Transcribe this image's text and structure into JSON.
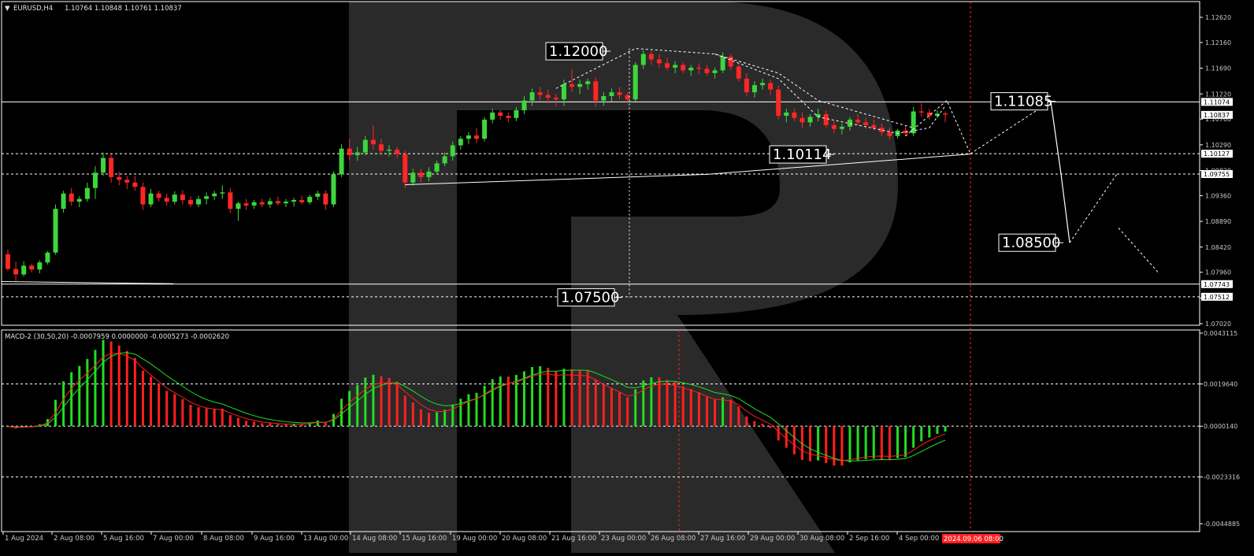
{
  "header": {
    "symbol": "EURUSD,H4",
    "ohlc": "1.10764 1.10848 1.10761 1.10837"
  },
  "macd_header": "MACD-2 (30,50,20) -0.0007959 0.0000000 -0.0005273 -0.0002620",
  "colors": {
    "bull": "#3dd63d",
    "bear": "#ff2626",
    "grid": "#ffffff",
    "signal": "#ff2020",
    "macd_line": "#22dd22",
    "logo": "#2a2a2a"
  },
  "chart_data": [
    {
      "type": "candlestick",
      "ylim": [
        1.0702,
        1.1262
      ],
      "price_ticks": [
        "1.12620",
        "1.12160",
        "1.11690",
        "1.11220",
        "1.10760",
        "1.10290",
        "1.09820",
        "1.09360",
        "1.08890",
        "1.08420",
        "1.07960",
        "1.07490",
        "1.07020"
      ],
      "price_tick_values": [
        1.1262,
        1.1216,
        1.1169,
        1.1122,
        1.1076,
        1.1029,
        1.0982,
        1.0936,
        1.0889,
        1.0842,
        1.0796,
        1.0749,
        1.0702
      ],
      "horizontal_levels": [
        {
          "label": "1.11074",
          "value": 1.11074,
          "style": "solid"
        },
        {
          "label": "1.10837",
          "value": 1.10837,
          "style": "current"
        },
        {
          "label": "1.10127",
          "value": 1.10127,
          "style": "dashed"
        },
        {
          "label": "1.09755",
          "value": 1.09755,
          "style": "dashed"
        },
        {
          "label": "1.07743",
          "value": 1.07743,
          "style": "solid"
        },
        {
          "label": "1.07512",
          "value": 1.07512,
          "style": "dashed"
        }
      ],
      "annotations": [
        {
          "text": "1.12000",
          "value": 1.12
        },
        {
          "text": "1.07500",
          "value": 1.075
        },
        {
          "text": "1.10114",
          "value": 1.10114
        },
        {
          "text": "1.11085",
          "value": 1.11085
        },
        {
          "text": "1.08500",
          "value": 1.085
        }
      ],
      "x_labels": [
        "1 Aug 2024",
        "2 Aug 08:00",
        "5 Aug 16:00",
        "7 Aug 00:00",
        "8 Aug 08:00",
        "9 Aug 16:00",
        "13 Aug 00:00",
        "14 Aug 08:00",
        "15 Aug 16:00",
        "19 Aug 00:00",
        "20 Aug 08:00",
        "21 Aug 16:00",
        "23 Aug 00:00",
        "26 Aug 08:00",
        "27 Aug 16:00",
        "29 Aug 00:00",
        "30 Aug 08:00",
        "2 Sep 16:00",
        "4 Sep 00:00"
      ],
      "x_label_highlight": "2024.09.06 08:00",
      "projected_path": [
        1.10127,
        1.11085,
        1.09755,
        1.085,
        1.09755
      ],
      "candles": [
        [
          1.0829,
          1.0838,
          1.0798,
          1.0802
        ],
        [
          1.0802,
          1.0815,
          1.078,
          1.0792
        ],
        [
          1.0792,
          1.0816,
          1.0788,
          1.0808
        ],
        [
          1.0808,
          1.0812,
          1.0796,
          1.0801
        ],
        [
          1.0801,
          1.0818,
          1.0794,
          1.0814
        ],
        [
          1.0814,
          1.0835,
          1.081,
          1.0832
        ],
        [
          1.0832,
          1.092,
          1.0828,
          1.0912
        ],
        [
          1.0912,
          1.0945,
          1.0905,
          1.094
        ],
        [
          1.094,
          1.095,
          1.0918,
          1.0925
        ],
        [
          1.0925,
          1.0935,
          1.0915,
          1.093
        ],
        [
          1.093,
          1.096,
          1.0925,
          1.095
        ],
        [
          1.095,
          1.099,
          1.093,
          1.0978
        ],
        [
          1.0978,
          1.1015,
          1.0972,
          1.1005
        ],
        [
          1.1005,
          1.1012,
          1.096,
          1.097
        ],
        [
          1.097,
          1.098,
          1.0955,
          1.0965
        ],
        [
          1.0965,
          1.0972,
          1.0948,
          1.096
        ],
        [
          1.096,
          1.0972,
          1.0945,
          1.0952
        ],
        [
          1.0952,
          1.096,
          1.091,
          1.092
        ],
        [
          1.092,
          1.0948,
          1.0915,
          1.094
        ],
        [
          1.094,
          1.0945,
          1.0925,
          1.0932
        ],
        [
          1.0932,
          1.094,
          1.0918,
          1.0925
        ],
        [
          1.0925,
          1.0944,
          1.092,
          1.0938
        ],
        [
          1.0938,
          1.0946,
          1.092,
          1.0928
        ],
        [
          1.0928,
          1.0935,
          1.0915,
          1.092
        ],
        [
          1.092,
          1.0936,
          1.0915,
          1.093
        ],
        [
          1.093,
          1.0942,
          1.092,
          1.0935
        ],
        [
          1.0935,
          1.0945,
          1.0928,
          1.094
        ],
        [
          1.094,
          1.0955,
          1.093,
          1.0942
        ],
        [
          1.0942,
          1.095,
          1.0905,
          1.0912
        ],
        [
          1.0912,
          1.0925,
          1.089,
          1.0922
        ],
        [
          1.0922,
          1.093,
          1.091,
          1.0918
        ],
        [
          1.0918,
          1.0928,
          1.0912,
          1.0924
        ],
        [
          1.0924,
          1.093,
          1.0915,
          1.092
        ],
        [
          1.092,
          1.0932,
          1.0914,
          1.0926
        ],
        [
          1.0926,
          1.0934,
          1.0918,
          1.0922
        ],
        [
          1.0922,
          1.093,
          1.0915,
          1.0925
        ],
        [
          1.0925,
          1.0932,
          1.0916,
          1.0928
        ],
        [
          1.0928,
          1.0936,
          1.092,
          1.0924
        ],
        [
          1.0924,
          1.0938,
          1.092,
          1.0934
        ],
        [
          1.0934,
          1.0945,
          1.0928,
          1.094
        ],
        [
          1.094,
          1.0946,
          1.091,
          1.092
        ],
        [
          1.092,
          1.098,
          1.0915,
          1.0975
        ],
        [
          1.0975,
          1.103,
          1.097,
          1.1022
        ],
        [
          1.1022,
          1.104,
          1.1,
          1.101
        ],
        [
          1.101,
          1.1025,
          1.1,
          1.1015
        ],
        [
          1.1015,
          1.1045,
          1.101,
          1.1038
        ],
        [
          1.1038,
          1.1065,
          1.102,
          1.103
        ],
        [
          1.103,
          1.104,
          1.101,
          1.1018
        ],
        [
          1.1018,
          1.1028,
          1.1008,
          1.102
        ],
        [
          1.102,
          1.1025,
          1.1005,
          1.1012
        ],
        [
          1.1012,
          1.1018,
          1.095,
          1.096
        ],
        [
          1.096,
          1.0985,
          1.0955,
          1.0978
        ],
        [
          1.0978,
          1.0985,
          1.096,
          1.097
        ],
        [
          1.097,
          1.0988,
          1.0962,
          1.098
        ],
        [
          1.098,
          1.1,
          1.0975,
          1.0995
        ],
        [
          1.0995,
          1.1015,
          1.099,
          1.1008
        ],
        [
          1.1008,
          1.1035,
          1.1,
          1.1028
        ],
        [
          1.1028,
          1.1045,
          1.102,
          1.104
        ],
        [
          1.104,
          1.1052,
          1.103,
          1.1046
        ],
        [
          1.1046,
          1.106,
          1.1032,
          1.104
        ],
        [
          1.104,
          1.108,
          1.1035,
          1.1075
        ],
        [
          1.1075,
          1.1095,
          1.1068,
          1.1088
        ],
        [
          1.1088,
          1.1092,
          1.1075,
          1.1082
        ],
        [
          1.1082,
          1.1088,
          1.107,
          1.1078
        ],
        [
          1.1078,
          1.1098,
          1.1072,
          1.1092
        ],
        [
          1.1092,
          1.1118,
          1.1085,
          1.111
        ],
        [
          1.111,
          1.1132,
          1.11,
          1.1125
        ],
        [
          1.1125,
          1.1135,
          1.111,
          1.112
        ],
        [
          1.112,
          1.113,
          1.1105,
          1.1115
        ],
        [
          1.1115,
          1.1122,
          1.11,
          1.1112
        ],
        [
          1.1112,
          1.1148,
          1.11,
          1.114
        ],
        [
          1.114,
          1.1168,
          1.1125,
          1.1135
        ],
        [
          1.1135,
          1.1148,
          1.1122,
          1.114
        ],
        [
          1.114,
          1.115,
          1.113,
          1.1145
        ],
        [
          1.1145,
          1.1152,
          1.1098,
          1.111
        ],
        [
          1.111,
          1.1125,
          1.11,
          1.1118
        ],
        [
          1.1118,
          1.1132,
          1.1108,
          1.1125
        ],
        [
          1.1125,
          1.1135,
          1.1112,
          1.112
        ],
        [
          1.112,
          1.1125,
          1.1105,
          1.1112
        ],
        [
          1.1112,
          1.118,
          1.1108,
          1.1175
        ],
        [
          1.1175,
          1.1202,
          1.1168,
          1.1195
        ],
        [
          1.1195,
          1.12,
          1.1175,
          1.1185
        ],
        [
          1.1185,
          1.1195,
          1.117,
          1.1178
        ],
        [
          1.1178,
          1.1188,
          1.1165,
          1.117
        ],
        [
          1.117,
          1.1182,
          1.116,
          1.1175
        ],
        [
          1.1175,
          1.118,
          1.116,
          1.1165
        ],
        [
          1.1165,
          1.1175,
          1.1155,
          1.117
        ],
        [
          1.117,
          1.1178,
          1.1158,
          1.1168
        ],
        [
          1.1168,
          1.1175,
          1.1155,
          1.116
        ],
        [
          1.116,
          1.117,
          1.115,
          1.1165
        ],
        [
          1.1165,
          1.1198,
          1.116,
          1.119
        ],
        [
          1.119,
          1.1195,
          1.1165,
          1.1172
        ],
        [
          1.1172,
          1.1178,
          1.1145,
          1.115
        ],
        [
          1.115,
          1.116,
          1.1118,
          1.1125
        ],
        [
          1.1125,
          1.1145,
          1.1115,
          1.1138
        ],
        [
          1.1138,
          1.115,
          1.113,
          1.1142
        ],
        [
          1.1142,
          1.1148,
          1.112,
          1.113
        ],
        [
          1.113,
          1.1138,
          1.1075,
          1.1082
        ],
        [
          1.1082,
          1.1095,
          1.107,
          1.1088
        ],
        [
          1.1088,
          1.1095,
          1.1072,
          1.1078
        ],
        [
          1.1078,
          1.1088,
          1.106,
          1.107
        ],
        [
          1.107,
          1.1085,
          1.1062,
          1.108
        ],
        [
          1.108,
          1.1095,
          1.1072,
          1.1085
        ],
        [
          1.1085,
          1.1092,
          1.106,
          1.1065
        ],
        [
          1.1065,
          1.1072,
          1.105,
          1.1058
        ],
        [
          1.1058,
          1.1068,
          1.1048,
          1.1062
        ],
        [
          1.1062,
          1.108,
          1.1055,
          1.1075
        ],
        [
          1.1075,
          1.1085,
          1.1065,
          1.107
        ],
        [
          1.107,
          1.1078,
          1.1058,
          1.1065
        ],
        [
          1.1065,
          1.1075,
          1.1055,
          1.106
        ],
        [
          1.106,
          1.1068,
          1.1045,
          1.1052
        ],
        [
          1.1052,
          1.106,
          1.1038,
          1.1045
        ],
        [
          1.1045,
          1.1058,
          1.104,
          1.1055
        ],
        [
          1.1055,
          1.1065,
          1.1045,
          1.105
        ],
        [
          1.105,
          1.1098,
          1.1045,
          1.109
        ],
        [
          1.109,
          1.1105,
          1.108,
          1.1088
        ],
        [
          1.1088,
          1.1095,
          1.1075,
          1.1082
        ],
        [
          1.1082,
          1.1092,
          1.1078,
          1.1086
        ],
        [
          1.1086,
          1.109,
          1.107,
          1.1084
        ]
      ]
    },
    {
      "type": "histogram",
      "ylim": [
        -0.0044885,
        0.0043115
      ],
      "ticks": [
        "0.0043115",
        "0.0019640",
        "0.0000140",
        "-0.0023316",
        "-0.0044885"
      ],
      "tick_values": [
        0.0043115,
        0.001964,
        1.4e-05,
        -0.0023316,
        -0.0044885
      ]
    }
  ]
}
